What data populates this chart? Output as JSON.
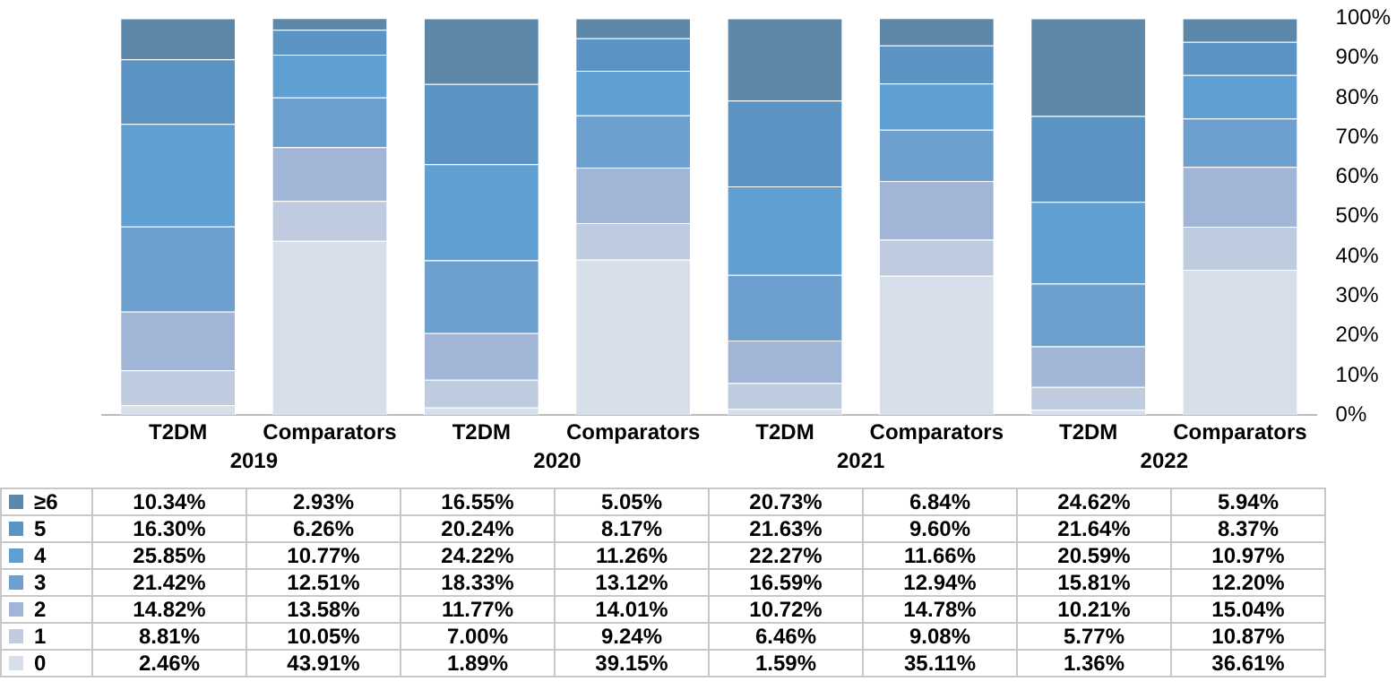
{
  "chart_data": {
    "type": "bar",
    "stacked": true,
    "categories": [
      "T2DM",
      "Comparators",
      "T2DM",
      "Comparators",
      "T2DM",
      "Comparators",
      "T2DM",
      "Comparators"
    ],
    "annotations": [
      "2019",
      "2020",
      "2021",
      "2022"
    ],
    "ylim": [
      0,
      100
    ],
    "yticks": [
      {
        "value": 0,
        "label": "0%"
      },
      {
        "value": 10,
        "label": "10%"
      },
      {
        "value": 20,
        "label": "20%"
      },
      {
        "value": 30,
        "label": "30%"
      },
      {
        "value": 40,
        "label": "40%"
      },
      {
        "value": 50,
        "label": "50%"
      },
      {
        "value": 60,
        "label": "60%"
      },
      {
        "value": 70,
        "label": "70%"
      },
      {
        "value": 80,
        "label": "80%"
      },
      {
        "value": 90,
        "label": "90%"
      },
      {
        "value": 100,
        "label": "100%"
      }
    ],
    "grid": false,
    "legend": "bottom left",
    "series": [
      {
        "name": "0",
        "color": "#d6dfea",
        "values": [
          2.46,
          43.91,
          1.89,
          39.15,
          1.59,
          35.11,
          1.36,
          36.61
        ],
        "value_labels": [
          "2.46%",
          "43.91%",
          "1.89%",
          "39.15%",
          "1.59%",
          "35.11%",
          "1.36%",
          "36.61%"
        ]
      },
      {
        "name": "1",
        "color": "#bfcbde",
        "values": [
          8.81,
          10.05,
          7.0,
          9.24,
          6.46,
          9.08,
          5.77,
          10.87
        ],
        "value_labels": [
          "8.81%",
          "10.05%",
          "7.00%",
          "9.24%",
          "6.46%",
          "9.08%",
          "5.77%",
          "10.87%"
        ]
      },
      {
        "name": "2",
        "color": "#a1b5d6",
        "values": [
          14.82,
          13.58,
          11.77,
          14.01,
          10.72,
          14.78,
          10.21,
          15.04
        ],
        "value_labels": [
          "14.82%",
          "13.58%",
          "11.77%",
          "14.01%",
          "10.72%",
          "14.78%",
          "10.21%",
          "15.04%"
        ]
      },
      {
        "name": "3",
        "color": "#6d9fcf",
        "values": [
          21.42,
          12.51,
          18.33,
          13.12,
          16.59,
          12.94,
          15.81,
          12.2
        ],
        "value_labels": [
          "21.42%",
          "12.51%",
          "18.33%",
          "13.12%",
          "16.59%",
          "12.94%",
          "15.81%",
          "12.20%"
        ]
      },
      {
        "name": "4",
        "color": "#5f9fd2",
        "values": [
          25.85,
          10.77,
          24.22,
          11.26,
          22.27,
          11.66,
          20.59,
          10.97
        ],
        "value_labels": [
          "25.85%",
          "10.77%",
          "24.22%",
          "11.26%",
          "22.27%",
          "11.66%",
          "20.59%",
          "10.97%"
        ]
      },
      {
        "name": "5",
        "color": "#5b93c2",
        "values": [
          16.3,
          6.26,
          20.24,
          8.17,
          21.63,
          9.6,
          21.64,
          8.37
        ],
        "value_labels": [
          "16.30%",
          "6.26%",
          "20.24%",
          "8.17%",
          "21.63%",
          "9.60%",
          "21.64%",
          "8.37%"
        ]
      },
      {
        "name": "≥6",
        "color": "#5e88aa",
        "values": [
          10.34,
          2.93,
          16.55,
          5.05,
          20.73,
          6.84,
          24.62,
          5.94
        ],
        "value_labels": [
          "10.34%",
          "2.93%",
          "16.55%",
          "5.05%",
          "20.73%",
          "6.84%",
          "24.62%",
          "5.94%"
        ]
      }
    ]
  }
}
